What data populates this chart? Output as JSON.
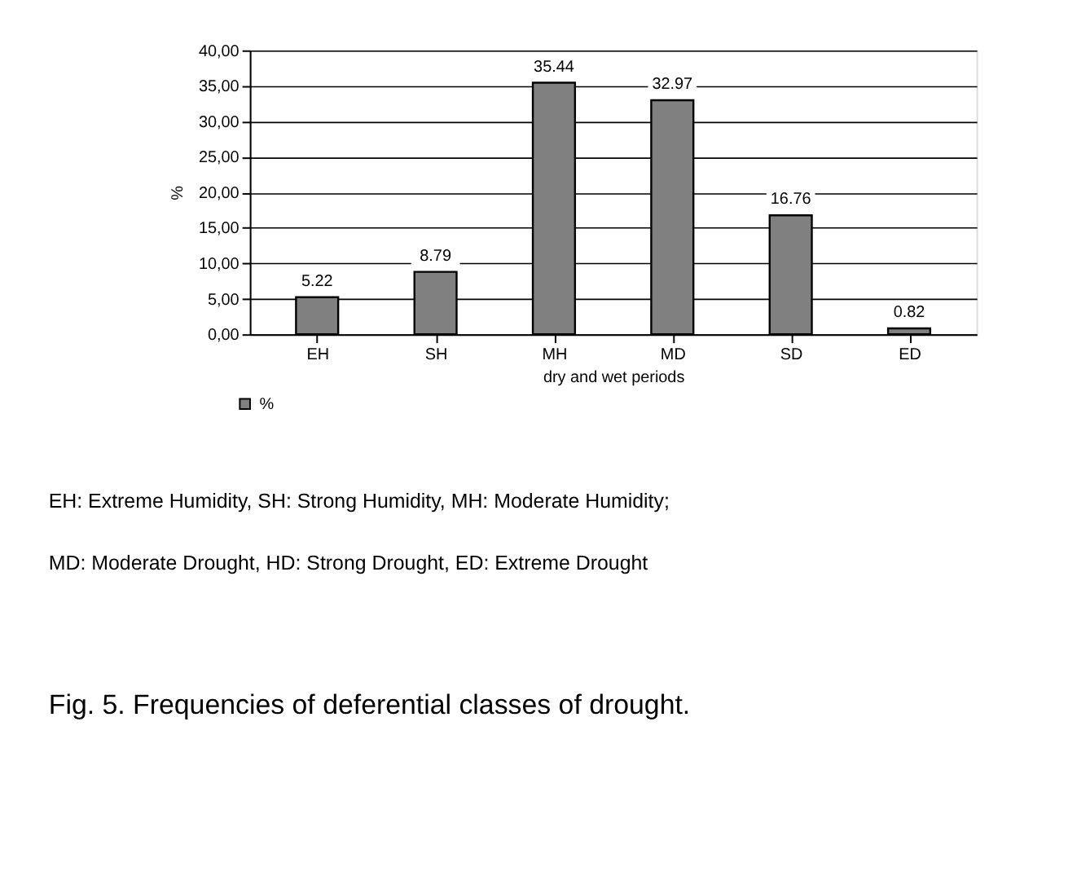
{
  "chart_data": {
    "type": "bar",
    "categories": [
      "EH",
      "SH",
      "MH",
      "MD",
      "SD",
      "ED"
    ],
    "series": [
      {
        "name": "%",
        "color": "#808080",
        "values": [
          5.22,
          8.79,
          35.44,
          32.97,
          16.76,
          0.82
        ]
      }
    ],
    "xlabel": "dry and wet periods",
    "ylabel": "%",
    "ylim": [
      0,
      40
    ],
    "yticks": [
      {
        "value": 0,
        "label": "0,00"
      },
      {
        "value": 5,
        "label": "5,00"
      },
      {
        "value": 10,
        "label": "10,00"
      },
      {
        "value": 15,
        "label": "15,00"
      },
      {
        "value": 20,
        "label": "20,00"
      },
      {
        "value": 25,
        "label": "25,00"
      },
      {
        "value": 30,
        "label": "30,00"
      },
      {
        "value": 35,
        "label": "35,00"
      },
      {
        "value": 40,
        "label": "40,00"
      }
    ],
    "grid": "y",
    "legend": "bottom left",
    "data_labels": true,
    "annotations": [
      "EH: Extreme Humidity, SH: Strong Humidity, MH: Moderate Humidity;",
      "MD: Moderate Drought, HD: Strong Drought, ED: Extreme Drought",
      "Fig. 5. Frequencies of deferential classes of drought."
    ]
  }
}
